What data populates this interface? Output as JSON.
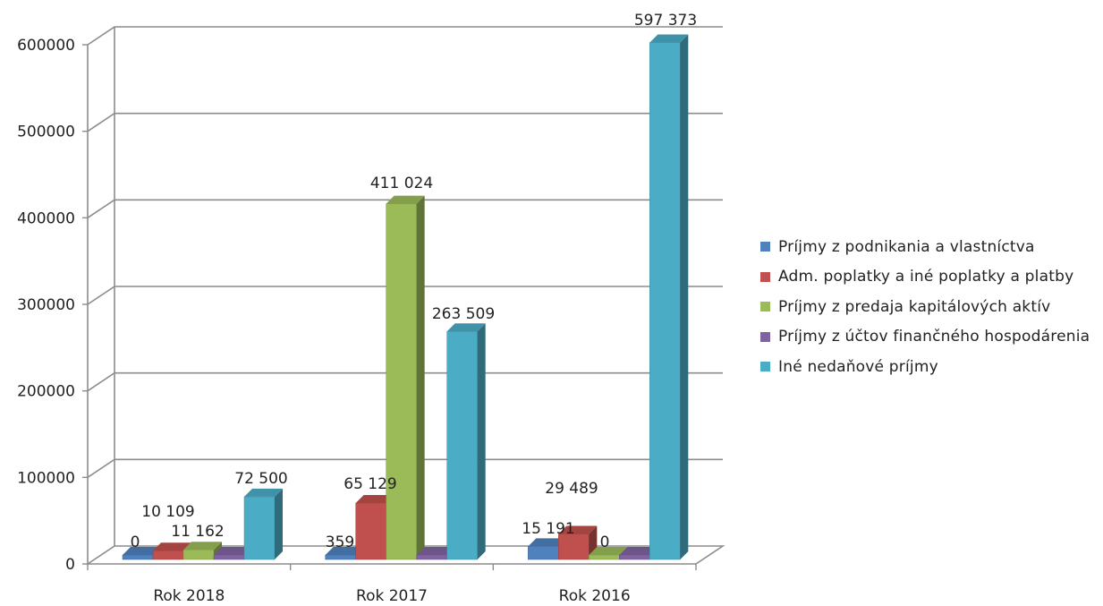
{
  "chart_data": {
    "type": "bar",
    "style": "3d-clustered-column",
    "categories": [
      "Rok 2018",
      "Rok 2017",
      "Rok 2016"
    ],
    "series": [
      {
        "name": "Príjmy z podnikania a vlastníctva",
        "color": "#4F81BD",
        "values": [
          0,
          359,
          15191
        ],
        "labels": [
          "0",
          "359",
          "15 191"
        ]
      },
      {
        "name": "Adm. poplatky a iné poplatky a platby",
        "color": "#C0504D",
        "values": [
          10109,
          65129,
          29489
        ],
        "labels": [
          "10 109",
          "65 129",
          "29 489"
        ]
      },
      {
        "name": "Príjmy z predaja kapitálových aktív",
        "color": "#9BBB59",
        "values": [
          11162,
          411024,
          0
        ],
        "labels": [
          "11 162",
          "411 024",
          "0"
        ]
      },
      {
        "name": "Príjmy z účtov finančného hospodárenia",
        "color": "#8064A2",
        "values": [
          0,
          0,
          0
        ],
        "labels": [
          "",
          "",
          ""
        ]
      },
      {
        "name": "Iné nedaňové príjmy",
        "color": "#4BACC6",
        "values": [
          72500,
          263509,
          597373
        ],
        "labels": [
          "72 500",
          "263 509",
          "597 373"
        ]
      }
    ],
    "ylim": [
      0,
      600000
    ],
    "yticks": [
      "0",
      "100000",
      "200000",
      "300000",
      "400000",
      "500000",
      "600000"
    ],
    "grid": true,
    "legend_position": "right"
  }
}
